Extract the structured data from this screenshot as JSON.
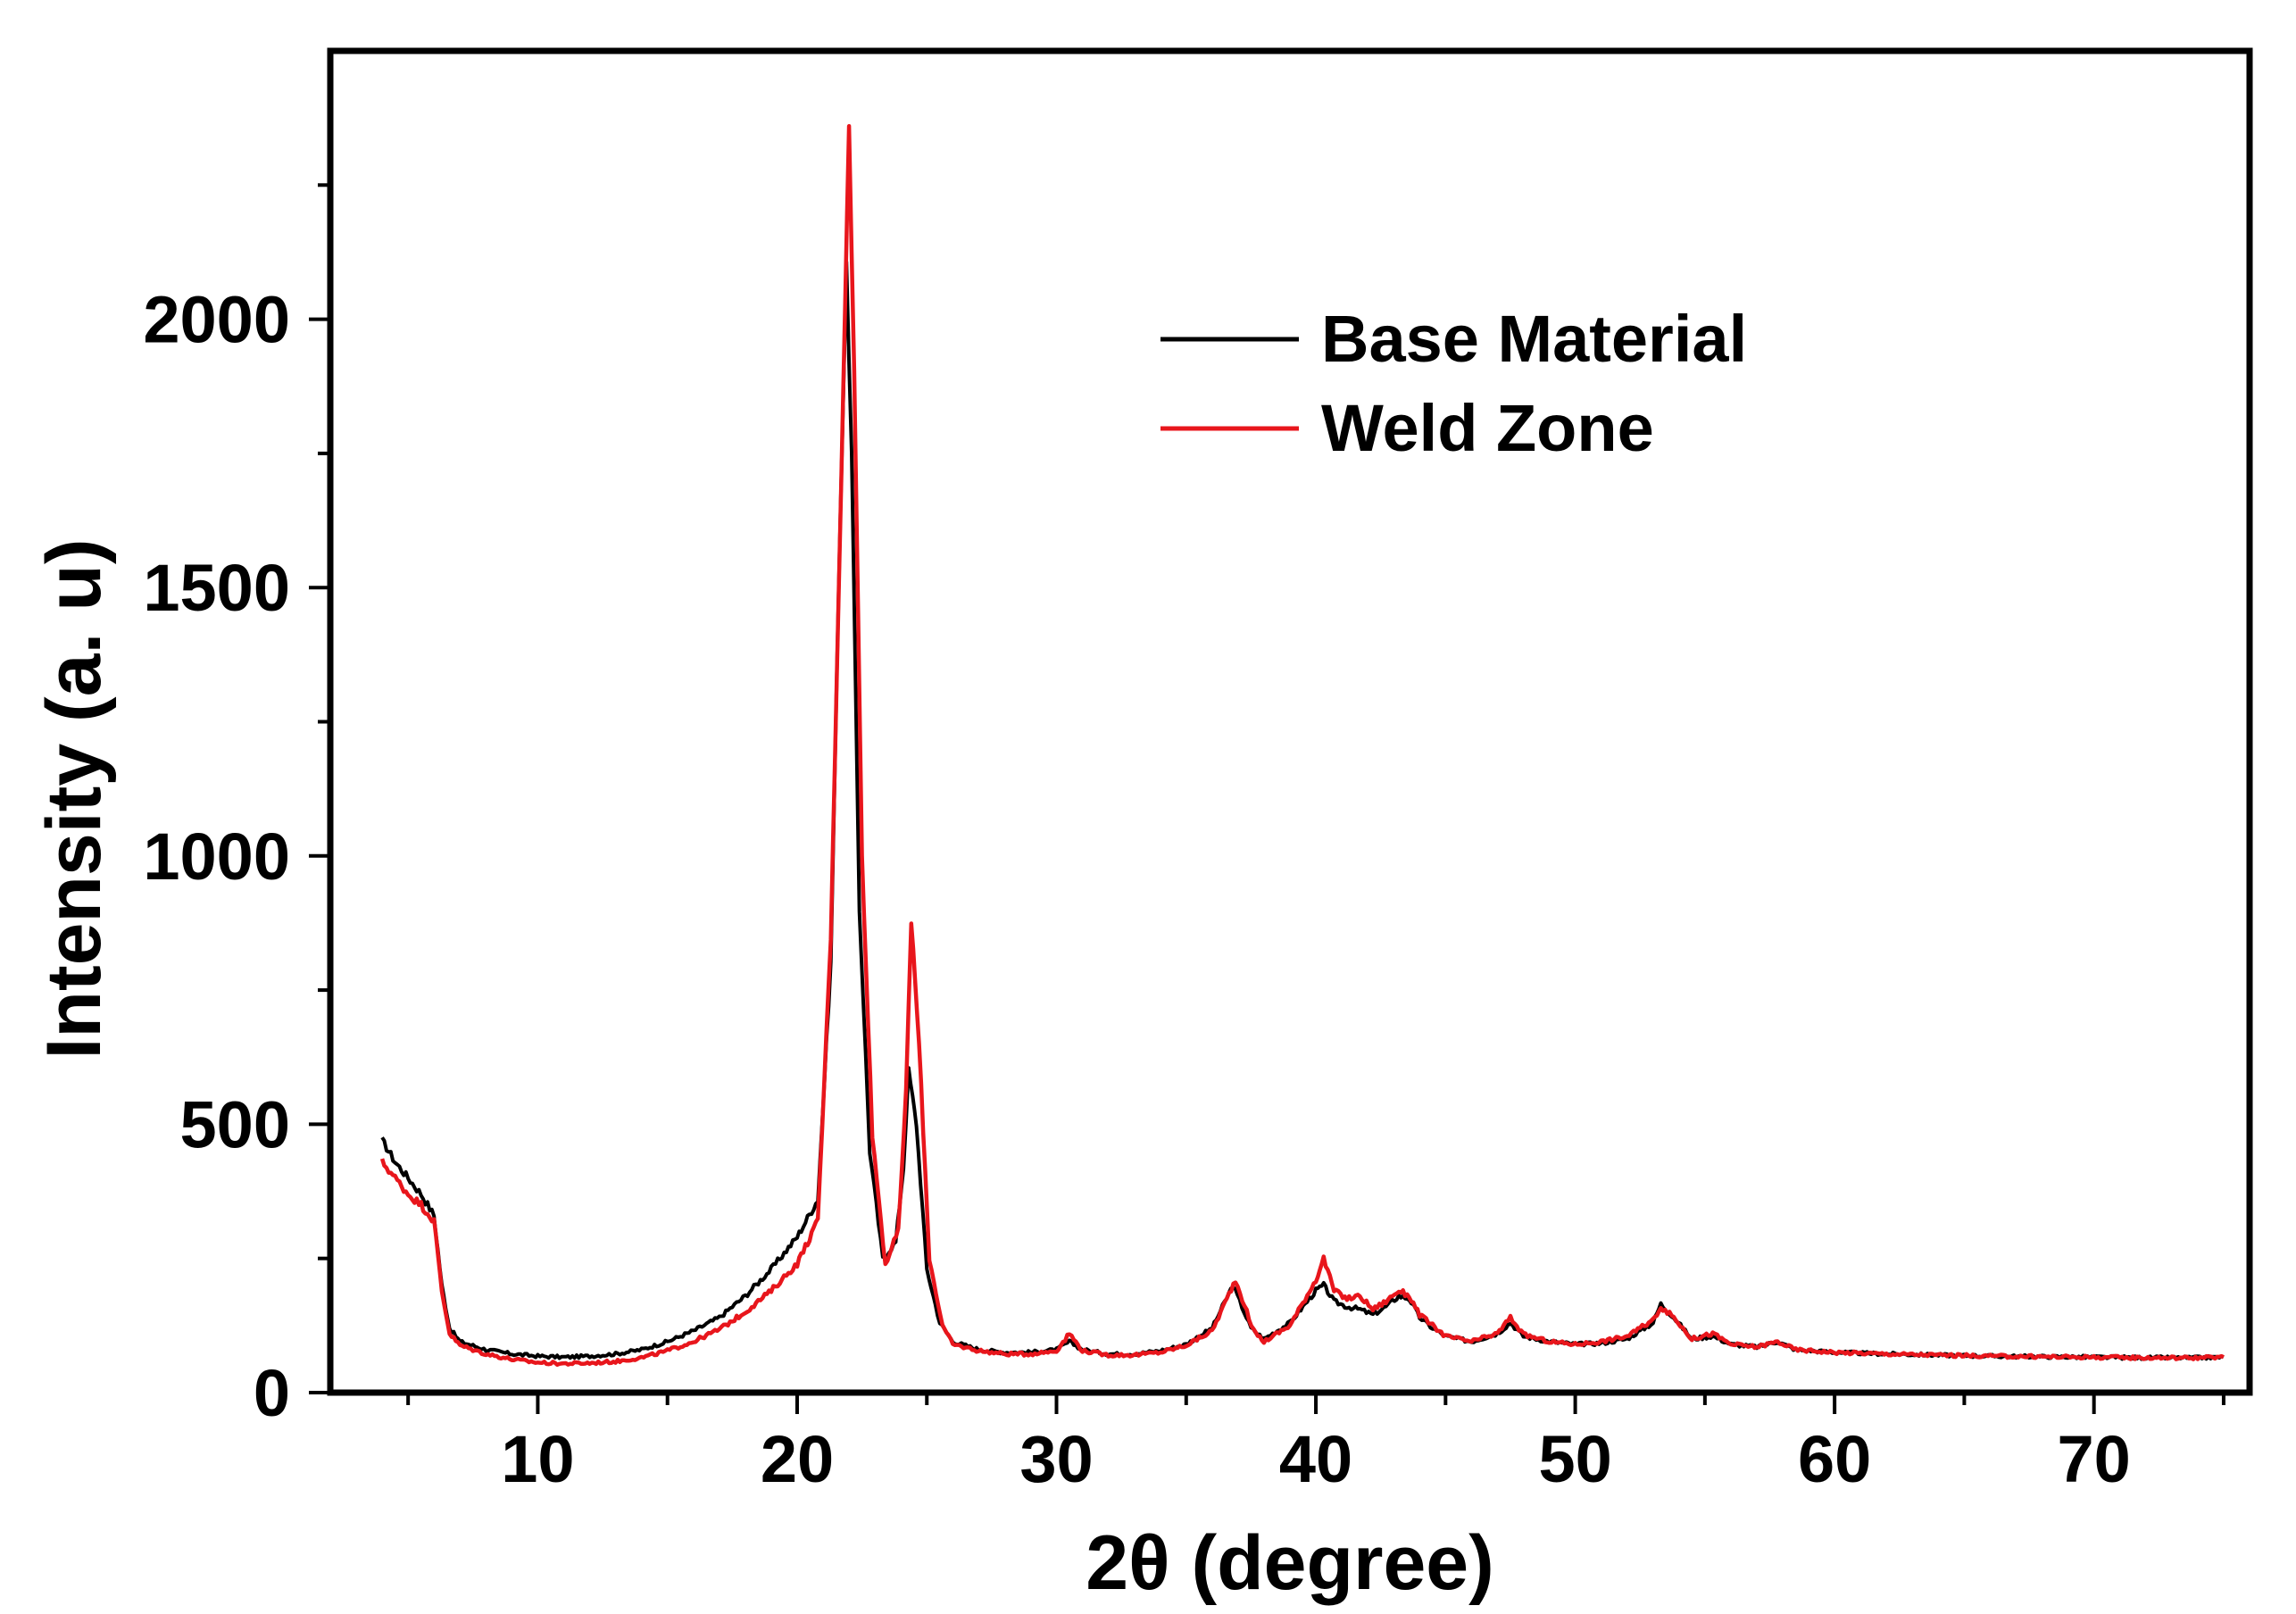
{
  "chart_data": {
    "type": "line",
    "title": "",
    "xlabel": "2θ (degree)",
    "ylabel": "Intensity (a. u)",
    "xlim": [
      2,
      76
    ],
    "ylim": [
      0,
      2500
    ],
    "xticks": [
      10,
      20,
      30,
      40,
      50,
      60,
      70
    ],
    "yticks": [
      0,
      500,
      1000,
      1500,
      2000
    ],
    "xtick_labels": [
      "10",
      "20",
      "30",
      "40",
      "50",
      "60",
      "70"
    ],
    "ytick_labels": [
      "0",
      "500",
      "1000",
      "1500",
      "2000"
    ],
    "legend_position": "top-center",
    "series": [
      {
        "name": "Base Material",
        "color": "#000000",
        "x": [
          4,
          4.5,
          5,
          5.5,
          6,
          6.3,
          6.6,
          7,
          8,
          9,
          10,
          11,
          12,
          13,
          14,
          15,
          16,
          17,
          18,
          19,
          20,
          20.8,
          21.3,
          21.6,
          21.9,
          22.1,
          22.4,
          22.8,
          23.3,
          23.8,
          24.1,
          24.3,
          24.6,
          25,
          25.5,
          26,
          27,
          28,
          29,
          30,
          30.5,
          31,
          32,
          33,
          34,
          35,
          36,
          36.8,
          37.5,
          38,
          39,
          40,
          40.3,
          40.7,
          41.2,
          41.7,
          42.2,
          42.7,
          43.2,
          43.6,
          44,
          44.5,
          45,
          46,
          47,
          47.5,
          48,
          49,
          50,
          51,
          52,
          53,
          53.3,
          53.8,
          54.5,
          55.3,
          56,
          57,
          57.8,
          58.5,
          60,
          62,
          64,
          66,
          68,
          70,
          72,
          74,
          75
        ],
        "values": [
          470,
          430,
          400,
          370,
          330,
          200,
          120,
          95,
          80,
          72,
          68,
          66,
          68,
          72,
          80,
          95,
          115,
          140,
          180,
          230,
          290,
          360,
          800,
          1500,
          2100,
          1750,
          900,
          450,
          250,
          280,
          420,
          600,
          500,
          230,
          130,
          95,
          80,
          75,
          75,
          80,
          95,
          80,
          72,
          72,
          78,
          90,
          120,
          200,
          120,
          100,
          130,
          190,
          200,
          170,
          160,
          155,
          145,
          160,
          180,
          175,
          140,
          120,
          105,
          95,
          110,
          130,
          105,
          95,
          90,
          92,
          100,
          130,
          165,
          140,
          100,
          105,
          90,
          85,
          95,
          80,
          75,
          72,
          70,
          68,
          67,
          66,
          65,
          65,
          66
        ]
      },
      {
        "name": "Weld Zone",
        "color": "#e8161c",
        "x": [
          4,
          4.5,
          5,
          5.5,
          6,
          6.3,
          6.6,
          7,
          8,
          9,
          10,
          11,
          12,
          13,
          14,
          15,
          16,
          17,
          18,
          19,
          20,
          20.8,
          21.3,
          21.7,
          22,
          22.2,
          22.5,
          22.9,
          23.4,
          23.9,
          24.2,
          24.4,
          24.7,
          25.1,
          25.6,
          26,
          27,
          28,
          29,
          30,
          30.5,
          31,
          32,
          33,
          34,
          35,
          36,
          36.9,
          37.6,
          38,
          39,
          40,
          40.3,
          40.7,
          41.2,
          41.7,
          42.2,
          42.7,
          43.2,
          43.6,
          44,
          44.5,
          45,
          46,
          47,
          47.5,
          48,
          49,
          50,
          51,
          52,
          53,
          53.3,
          53.8,
          54.5,
          55.3,
          56,
          57,
          57.8,
          58.5,
          60,
          62,
          64,
          66,
          68,
          70,
          72,
          74,
          75
        ],
        "values": [
          430,
          400,
          370,
          350,
          320,
          190,
          110,
          88,
          72,
          62,
          56,
          54,
          55,
          58,
          65,
          78,
          95,
          118,
          150,
          190,
          240,
          320,
          850,
          1700,
          2360,
          1900,
          1000,
          480,
          240,
          300,
          560,
          880,
          650,
          250,
          125,
          90,
          78,
          72,
          72,
          78,
          110,
          78,
          70,
          70,
          75,
          88,
          115,
          210,
          115,
          95,
          125,
          210,
          250,
          190,
          175,
          180,
          155,
          170,
          190,
          180,
          145,
          125,
          105,
          95,
          110,
          140,
          108,
          95,
          90,
          95,
          105,
          135,
          160,
          140,
          100,
          110,
          90,
          85,
          95,
          80,
          75,
          72,
          70,
          68,
          67,
          66,
          65,
          65,
          66
        ]
      }
    ]
  }
}
